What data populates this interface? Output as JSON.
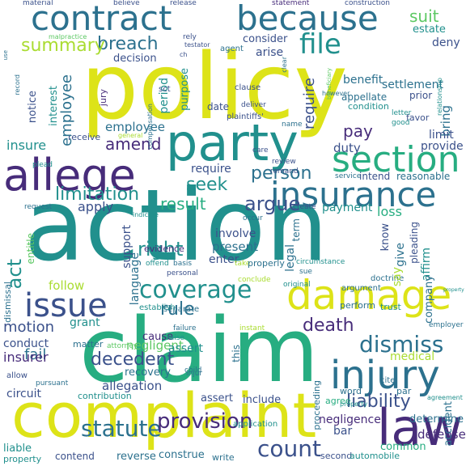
{
  "colors": [
    "#440154",
    "#472c7a",
    "#3b518b",
    "#2c718e",
    "#21908d",
    "#27ad81",
    "#5cc863",
    "#aadc32",
    "#dde318",
    "#fde725"
  ],
  "words": [
    {
      "text": "action",
      "c": 4
    },
    {
      "text": "policy",
      "c": 8
    },
    {
      "text": "claim",
      "c": 5
    },
    {
      "text": "complaint",
      "c": 8
    },
    {
      "text": "party",
      "c": 4
    },
    {
      "text": "allege",
      "c": 1
    },
    {
      "text": "contract",
      "c": 3
    },
    {
      "text": "because",
      "c": 3
    },
    {
      "text": "damage",
      "c": 8
    },
    {
      "text": "insurance",
      "c": 3
    },
    {
      "text": "law",
      "c": 1
    },
    {
      "text": "injury",
      "c": 3
    },
    {
      "text": "issue",
      "c": 2
    },
    {
      "text": "section",
      "c": 5
    },
    {
      "text": "file",
      "c": 4
    },
    {
      "text": "dismiss",
      "c": 3
    },
    {
      "text": "statute",
      "c": 3
    },
    {
      "text": "count",
      "c": 2
    },
    {
      "text": "provision",
      "c": 1
    },
    {
      "text": "coverage",
      "c": 4
    },
    {
      "text": "liability",
      "c": 2
    },
    {
      "text": "death",
      "c": 1
    },
    {
      "text": "rule",
      "c": 3
    },
    {
      "text": "act",
      "c": 4
    },
    {
      "text": "argue",
      "c": 2
    },
    {
      "text": "limitation",
      "c": 4
    },
    {
      "text": "right",
      "c": 4
    },
    {
      "text": "decedent",
      "c": 2
    },
    {
      "text": "motion",
      "c": 2
    },
    {
      "text": "seek",
      "c": 4
    },
    {
      "text": "person",
      "c": 3
    },
    {
      "text": "breach",
      "c": 3
    },
    {
      "text": "summary",
      "c": 7
    },
    {
      "text": "suit",
      "c": 6
    },
    {
      "text": "amend",
      "c": 1
    },
    {
      "text": "result",
      "c": 5
    },
    {
      "text": "pay",
      "c": 1
    },
    {
      "text": "provide",
      "c": 2
    },
    {
      "text": "insure",
      "c": 4
    },
    {
      "text": "employee",
      "c": 3
    },
    {
      "text": "duty",
      "c": 2
    },
    {
      "text": "apply",
      "c": 2
    },
    {
      "text": "loss",
      "c": 5
    },
    {
      "text": "require",
      "c": 2
    },
    {
      "text": "fail",
      "c": 3
    },
    {
      "text": "insurer",
      "c": 1
    },
    {
      "text": "conduct",
      "c": 2
    },
    {
      "text": "circuit",
      "c": 2
    },
    {
      "text": "allegation",
      "c": 2
    },
    {
      "text": "determine",
      "c": 3
    },
    {
      "text": "negligence",
      "c": 1
    },
    {
      "text": "bar",
      "c": 2
    },
    {
      "text": "present",
      "c": 3
    },
    {
      "text": "enter",
      "c": 2
    },
    {
      "text": "language",
      "c": 3
    },
    {
      "text": "involve",
      "c": 2
    },
    {
      "text": "follow",
      "c": 7
    },
    {
      "text": "support",
      "c": 2
    },
    {
      "text": "payment",
      "c": 4
    },
    {
      "text": "evidence",
      "c": 1
    },
    {
      "text": "grant",
      "c": 4
    },
    {
      "text": "recovery",
      "c": 3
    },
    {
      "text": "cause",
      "c": 1
    },
    {
      "text": "agreement",
      "c": 4
    },
    {
      "text": "employer",
      "c": 3
    },
    {
      "text": "medical",
      "c": 7
    },
    {
      "text": "defense",
      "c": 1
    },
    {
      "text": "reason",
      "c": 1
    },
    {
      "text": "contain",
      "c": 3
    },
    {
      "text": "note",
      "c": 1
    },
    {
      "text": "year",
      "c": 2
    },
    {
      "text": "shall",
      "c": 3
    },
    {
      "text": "recover",
      "c": 3
    },
    {
      "text": "base",
      "c": 2
    },
    {
      "text": "accident",
      "c": 3
    },
    {
      "text": "bring",
      "c": 3
    },
    {
      "text": "limit",
      "c": 2
    },
    {
      "text": "settlement",
      "c": 3
    },
    {
      "text": "benefit",
      "c": 3
    },
    {
      "text": "deny",
      "c": 2
    },
    {
      "text": "estate",
      "c": 4
    },
    {
      "text": "consider",
      "c": 2
    },
    {
      "text": "arise",
      "c": 2
    },
    {
      "text": "decision",
      "c": 2
    },
    {
      "text": "interest",
      "c": 4
    },
    {
      "text": "notice",
      "c": 2
    },
    {
      "text": "receive",
      "c": 2
    },
    {
      "text": "period",
      "c": 4
    },
    {
      "text": "purpose",
      "c": 4
    },
    {
      "text": "date",
      "c": 2
    },
    {
      "text": "term",
      "c": 3
    },
    {
      "text": "legal",
      "c": 3
    },
    {
      "text": "know",
      "c": 2
    },
    {
      "text": "give",
      "c": 3
    },
    {
      "text": "say",
      "c": 7
    },
    {
      "text": "affirm",
      "c": 4
    },
    {
      "text": "pleading",
      "c": 2
    },
    {
      "text": "company",
      "c": 3
    },
    {
      "text": "material",
      "c": 2
    },
    {
      "text": "believe",
      "c": 2
    },
    {
      "text": "release",
      "c": 2
    },
    {
      "text": "statement",
      "c": 1
    },
    {
      "text": "construction",
      "c": 2
    },
    {
      "text": "malpractice",
      "c": 6
    },
    {
      "text": "rely",
      "c": 2
    },
    {
      "text": "testator",
      "c": 2
    },
    {
      "text": "agent",
      "c": 3
    },
    {
      "text": "jury",
      "c": 1
    },
    {
      "text": "sct",
      "c": 2
    },
    {
      "text": "compensation",
      "c": 3
    },
    {
      "text": "clause",
      "c": 2
    },
    {
      "text": "deliver",
      "c": 2
    },
    {
      "text": "plaintiffs'",
      "c": 2
    },
    {
      "text": "name",
      "c": 3
    },
    {
      "text": "condition",
      "c": 4
    },
    {
      "text": "appellate",
      "c": 3
    },
    {
      "text": "prior",
      "c": 2
    },
    {
      "text": "favor",
      "c": 2
    },
    {
      "text": "letter",
      "c": 4
    },
    {
      "text": "good",
      "c": 4
    },
    {
      "text": "relationship",
      "c": 4
    },
    {
      "text": "however",
      "c": 3
    },
    {
      "text": "beneficiary",
      "c": 6
    },
    {
      "text": "care",
      "c": 2
    },
    {
      "text": "review",
      "c": 2
    },
    {
      "text": "remand",
      "c": 2
    },
    {
      "text": "service",
      "c": 3
    },
    {
      "text": "intend",
      "c": 2
    },
    {
      "text": "reasonable",
      "c": 3
    },
    {
      "text": "create",
      "c": 2
    },
    {
      "text": "occur",
      "c": 3
    },
    {
      "text": "entitle",
      "c": 6
    },
    {
      "text": "record",
      "c": 3
    },
    {
      "text": "plead",
      "c": 4
    },
    {
      "text": "request",
      "c": 3
    },
    {
      "text": "indicate",
      "c": 4
    },
    {
      "text": "general",
      "c": 7
    },
    {
      "text": "dismissal",
      "c": 3
    },
    {
      "text": "vehicle",
      "c": 3
    },
    {
      "text": "premium",
      "c": 3
    },
    {
      "text": "exist",
      "c": 4
    },
    {
      "text": "tort",
      "c": 3
    },
    {
      "text": "effect",
      "c": 3
    },
    {
      "text": "offend",
      "c": 4
    },
    {
      "text": "basis",
      "c": 3
    },
    {
      "text": "take",
      "c": 7
    },
    {
      "text": "properly",
      "c": 3
    },
    {
      "text": "circumstance",
      "c": 4
    },
    {
      "text": "sue",
      "c": 3
    },
    {
      "text": "personal",
      "c": 2
    },
    {
      "text": "conclude",
      "c": 7
    },
    {
      "text": "original",
      "c": 4
    },
    {
      "text": "argument",
      "c": 3
    },
    {
      "text": "doctrine",
      "c": 3
    },
    {
      "text": "establish",
      "c": 4
    },
    {
      "text": "separate",
      "c": 3
    },
    {
      "text": "instant",
      "c": 7
    },
    {
      "text": "perform",
      "c": 3
    },
    {
      "text": "trust",
      "c": 4
    },
    {
      "text": "failure",
      "c": 3
    },
    {
      "text": "raise",
      "c": 4
    },
    {
      "text": "child",
      "c": 3
    },
    {
      "text": "matter",
      "c": 3
    },
    {
      "text": "attorney",
      "c": 6
    },
    {
      "text": "allow",
      "c": 2
    },
    {
      "text": "pursuant",
      "c": 3
    },
    {
      "text": "contribution",
      "c": 4
    },
    {
      "text": "assert",
      "c": 2
    },
    {
      "text": "include",
      "c": 2
    },
    {
      "text": "wrongful",
      "c": 3
    },
    {
      "text": "liable",
      "c": 4
    },
    {
      "text": "application",
      "c": 4
    },
    {
      "text": "contend",
      "c": 2
    },
    {
      "text": "reverse",
      "c": 3
    },
    {
      "text": "construe",
      "c": 3
    },
    {
      "text": "write",
      "c": 3
    },
    {
      "text": "direct",
      "c": 3
    },
    {
      "text": "second",
      "c": 2
    },
    {
      "text": "automobile",
      "c": 4
    },
    {
      "text": "common",
      "c": 5
    },
    {
      "text": "cite",
      "c": 3
    },
    {
      "text": "par",
      "c": 3
    },
    {
      "text": "word",
      "c": 3
    },
    {
      "text": "agree",
      "c": 5
    },
    {
      "text": "proceeding",
      "c": 3
    },
    {
      "text": "property",
      "c": 4
    },
    {
      "text": "negligent",
      "c": 6
    },
    {
      "text": "assert",
      "c": 4
    },
    {
      "text": "injur",
      "c": 3
    },
    {
      "text": "this",
      "c": 3
    },
    {
      "text": "clear",
      "c": 3
    },
    {
      "text": "ch",
      "c": 2
    },
    {
      "text": "use",
      "c": 3
    }
  ]
}
